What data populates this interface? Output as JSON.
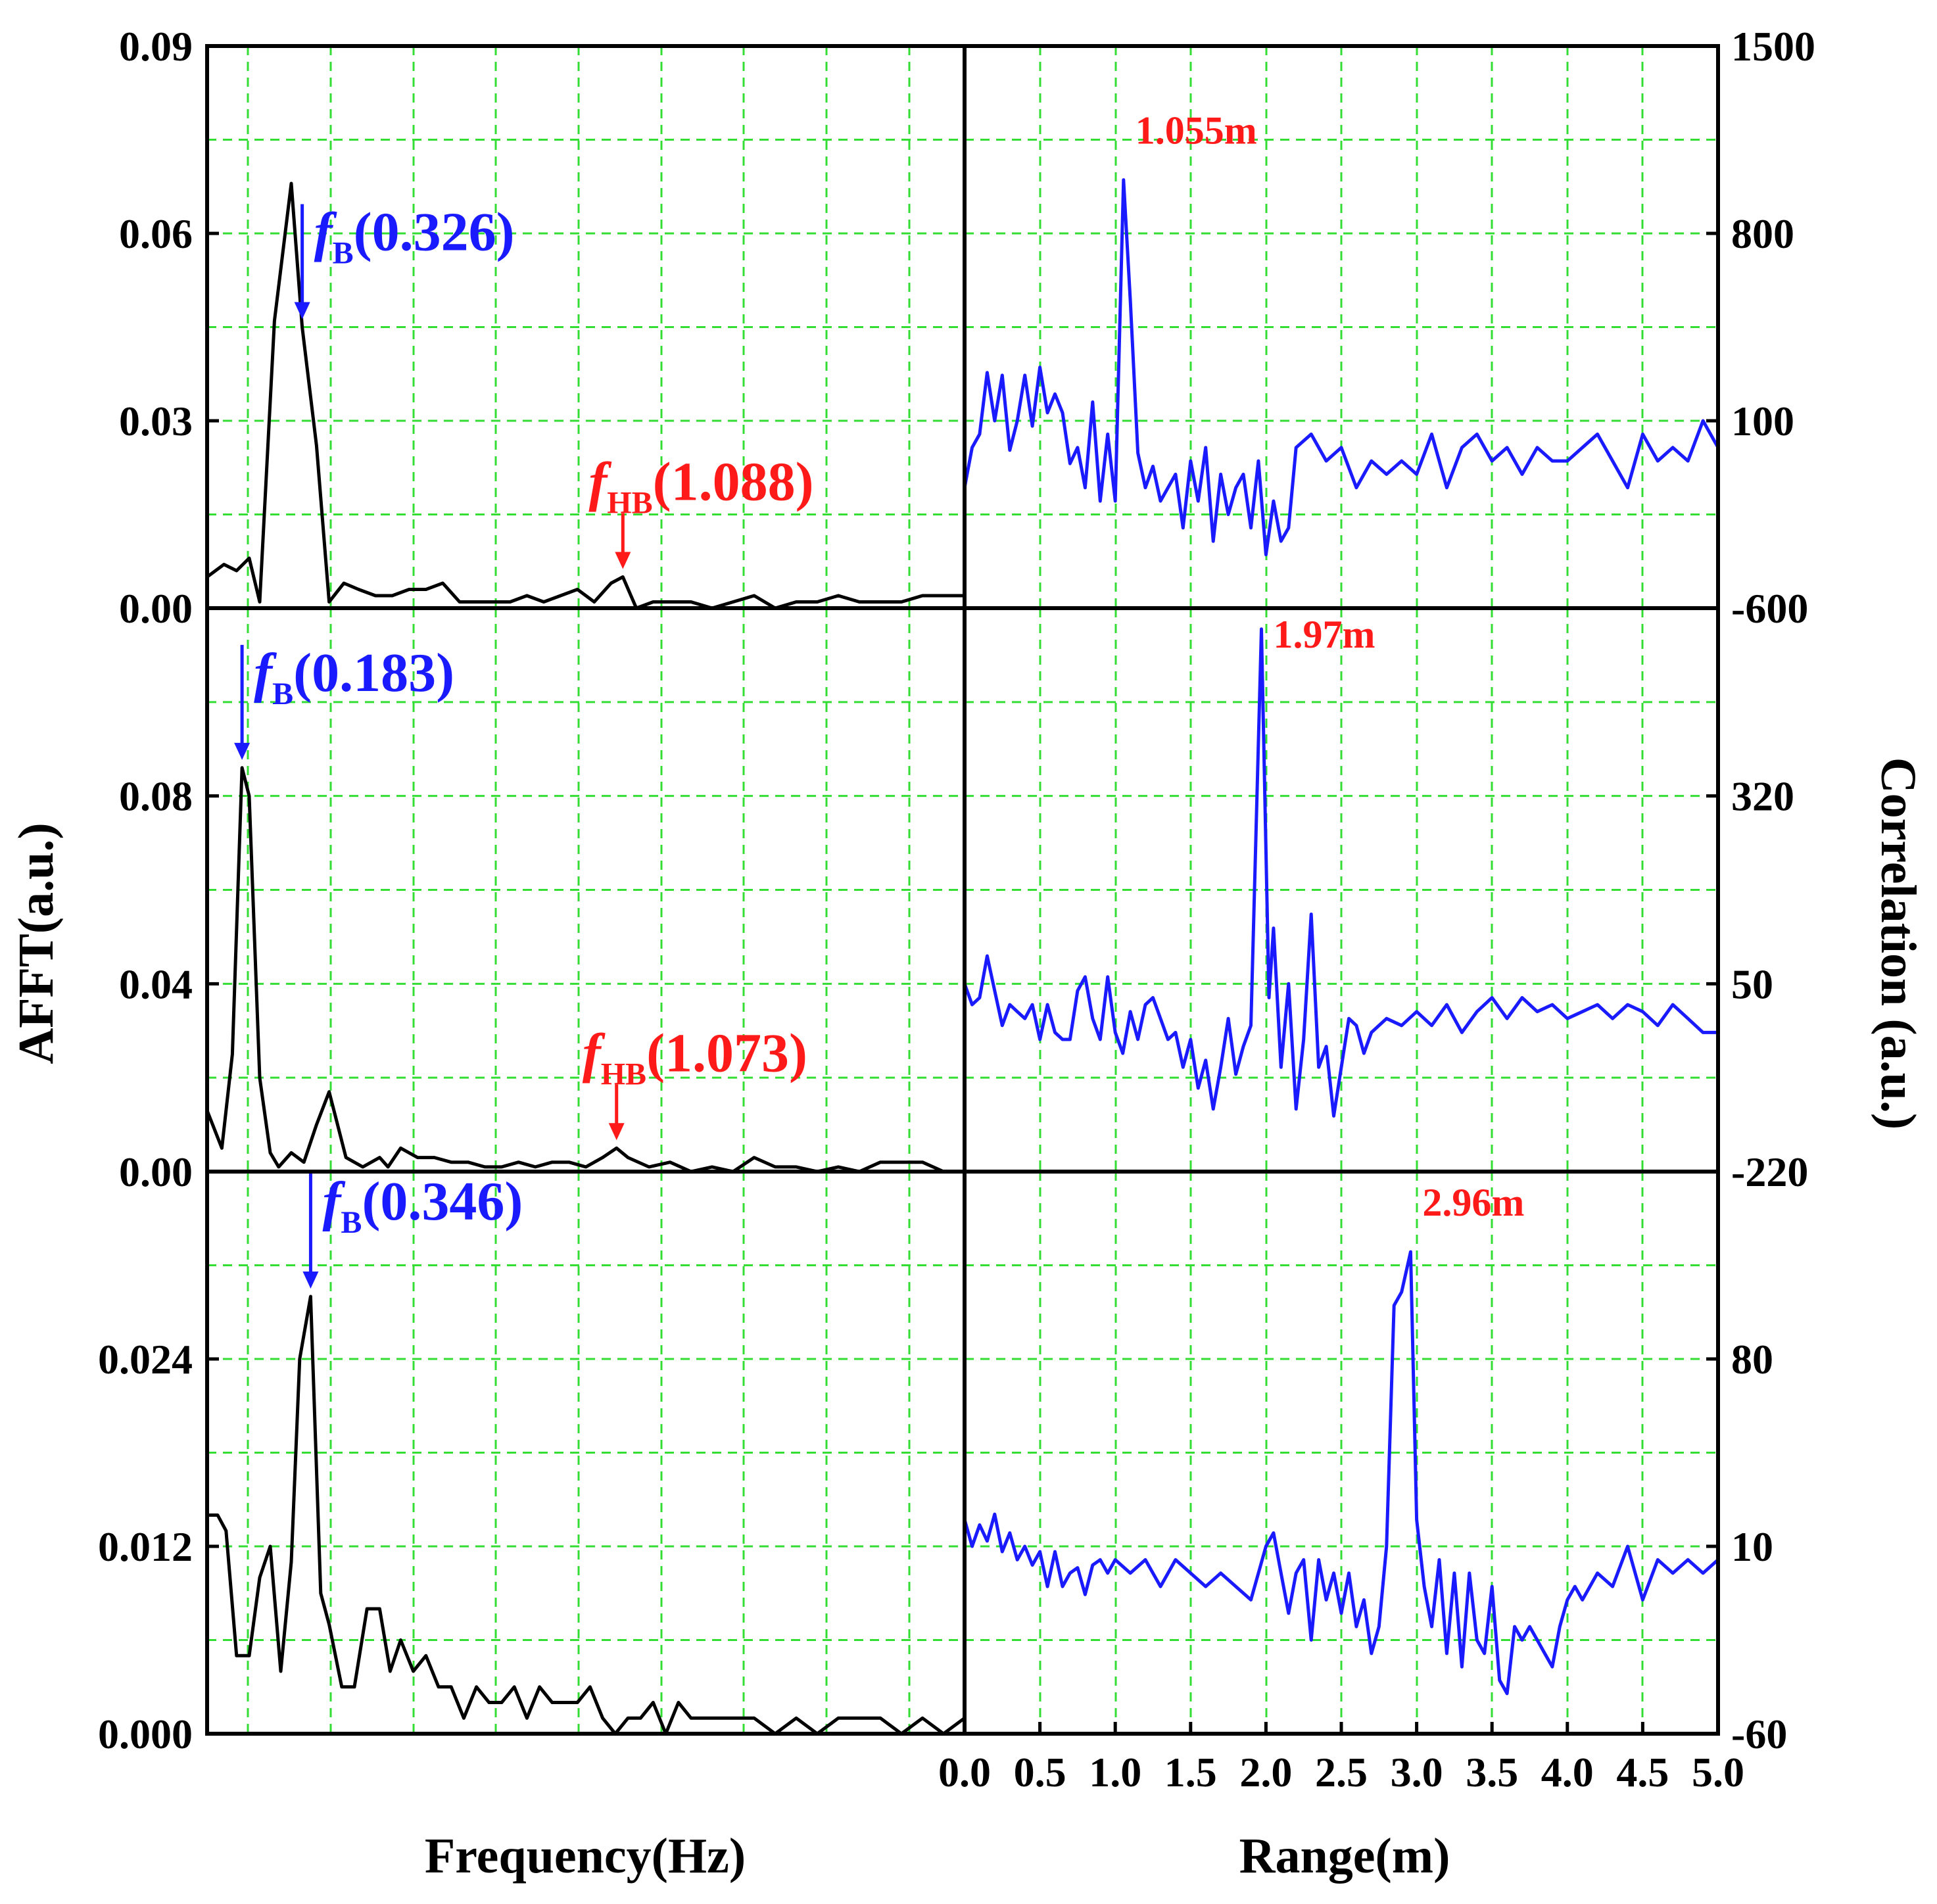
{
  "colors": {
    "fft_line": "#000000",
    "correlation_line": "#1a1aff",
    "freq_annotation": "#1a1aff",
    "hb_annotation": "#ff1a1a",
    "peak_label": "#ff1a1a",
    "grid": "#33dd33",
    "right_axis_title": "#1a1aff"
  },
  "axes": {
    "left_ylabel": "AFFT(a.u.)",
    "right_ylabel": "Correlation (a.u.)",
    "left_xlabel": "Frequency(Hz)",
    "right_xlabel": "Range(m)"
  },
  "chart_data": [
    {
      "type": "line",
      "panel": "top-left",
      "xlabel": "Frequency(Hz)",
      "ylabel": "AFFT(a.u.)",
      "xlim": [
        0.1,
        1.9
      ],
      "ylim": [
        0,
        0.09
      ],
      "xticks": [
        "0.1",
        "0.3",
        "0.5",
        "0.7",
        "0.9",
        "1.1",
        "1.3",
        "1.5",
        "1.7"
      ],
      "yticks": [
        "0.00",
        "0.03",
        "0.06",
        "0.09"
      ],
      "grid": true,
      "series": [
        {
          "x": [
            0.1,
            0.14,
            0.17,
            0.2,
            0.225,
            0.26,
            0.3,
            0.326,
            0.36,
            0.39,
            0.425,
            0.46,
            0.5,
            0.54,
            0.58,
            0.62,
            0.66,
            0.7,
            0.74,
            0.78,
            0.82,
            0.86,
            0.9,
            0.94,
            0.98,
            1.02,
            1.06,
            1.088,
            1.12,
            1.16,
            1.2,
            1.25,
            1.3,
            1.35,
            1.4,
            1.45,
            1.5,
            1.55,
            1.6,
            1.65,
            1.7,
            1.75,
            1.8,
            1.85,
            1.9
          ],
          "y": [
            0.005,
            0.007,
            0.006,
            0.008,
            0.001,
            0.046,
            0.068,
            0.045,
            0.026,
            0.001,
            0.004,
            0.003,
            0.002,
            0.002,
            0.003,
            0.003,
            0.004,
            0.001,
            0.001,
            0.001,
            0.001,
            0.002,
            0.001,
            0.002,
            0.003,
            0.001,
            0.004,
            0.005,
            0.0,
            0.001,
            0.001,
            0.001,
            0.0,
            0.001,
            0.002,
            0.0,
            0.001,
            0.001,
            0.002,
            0.001,
            0.001,
            0.001,
            0.002,
            0.002,
            0.002
          ]
        }
      ],
      "annotations": [
        {
          "italic": "f",
          "sub": "B",
          "text": "(0.326)",
          "x": 0.326,
          "color": "blue"
        },
        {
          "italic": "f",
          "sub": "HB",
          "text": "(1.088)",
          "x": 1.088,
          "color": "red"
        }
      ]
    },
    {
      "type": "line",
      "panel": "top-right",
      "xlabel": "Range(m)",
      "ylabel": "Correlation (a.u.)",
      "xlim": [
        0,
        5
      ],
      "ylim": [
        -600,
        1500
      ],
      "yticks": [
        "-600",
        "100",
        "800",
        "1500"
      ],
      "grid": true,
      "peak_label": "1.055m",
      "series": [
        {
          "x": [
            0.0,
            0.05,
            0.1,
            0.15,
            0.2,
            0.25,
            0.3,
            0.35,
            0.4,
            0.45,
            0.5,
            0.55,
            0.6,
            0.65,
            0.7,
            0.75,
            0.8,
            0.85,
            0.9,
            0.95,
            1.0,
            1.055,
            1.1,
            1.15,
            1.2,
            1.25,
            1.3,
            1.35,
            1.4,
            1.45,
            1.5,
            1.55,
            1.6,
            1.65,
            1.7,
            1.75,
            1.8,
            1.85,
            1.9,
            1.95,
            2.0,
            2.05,
            2.1,
            2.15,
            2.2,
            2.3,
            2.4,
            2.5,
            2.6,
            2.7,
            2.8,
            2.9,
            3.0,
            3.1,
            3.2,
            3.3,
            3.4,
            3.5,
            3.6,
            3.7,
            3.8,
            3.9,
            4.0,
            4.1,
            4.2,
            4.3,
            4.4,
            4.5,
            4.6,
            4.7,
            4.8,
            4.9,
            5.0
          ],
          "y": [
            -150,
            0,
            50,
            280,
            100,
            270,
            -10,
            100,
            270,
            80,
            300,
            130,
            200,
            130,
            -60,
            0,
            -150,
            170,
            -200,
            50,
            -200,
            1000,
            550,
            -20,
            -150,
            -70,
            -200,
            -150,
            -100,
            -300,
            -50,
            -200,
            0,
            -350,
            -100,
            -250,
            -150,
            -100,
            -300,
            -50,
            -400,
            -200,
            -350,
            -300,
            0,
            50,
            -50,
            0,
            -150,
            -50,
            -100,
            -50,
            -100,
            50,
            -150,
            0,
            50,
            -50,
            0,
            -100,
            0,
            -50,
            -50,
            0,
            50,
            -50,
            -150,
            50,
            -50,
            0,
            -50,
            100,
            0
          ]
        }
      ]
    },
    {
      "type": "line",
      "panel": "middle-left",
      "xlabel": "Frequency(Hz)",
      "ylabel": "AFFT(a.u.)",
      "xlim": [
        0.1,
        1.9
      ],
      "ylim": [
        0,
        0.12
      ],
      "yticks": [
        "0.00",
        "0.04",
        "0.08"
      ],
      "grid": true,
      "series": [
        {
          "x": [
            0.1,
            0.135,
            0.16,
            0.183,
            0.2,
            0.225,
            0.25,
            0.27,
            0.3,
            0.33,
            0.36,
            0.39,
            0.43,
            0.47,
            0.51,
            0.53,
            0.56,
            0.6,
            0.64,
            0.68,
            0.72,
            0.76,
            0.8,
            0.84,
            0.88,
            0.92,
            0.96,
            1.0,
            1.04,
            1.073,
            1.1,
            1.15,
            1.2,
            1.25,
            1.3,
            1.35,
            1.4,
            1.45,
            1.5,
            1.55,
            1.6,
            1.65,
            1.7,
            1.75,
            1.8,
            1.85
          ],
          "y": [
            0.013,
            0.005,
            0.025,
            0.086,
            0.08,
            0.02,
            0.004,
            0.001,
            0.004,
            0.002,
            0.01,
            0.017,
            0.003,
            0.001,
            0.003,
            0.001,
            0.005,
            0.003,
            0.003,
            0.002,
            0.002,
            0.001,
            0.001,
            0.002,
            0.001,
            0.002,
            0.002,
            0.001,
            0.003,
            0.005,
            0.003,
            0.001,
            0.002,
            0.0,
            0.001,
            0.0,
            0.003,
            0.001,
            0.001,
            0.0,
            0.001,
            0.0,
            0.002,
            0.002,
            0.002,
            0.0
          ]
        }
      ],
      "annotations": [
        {
          "italic": "f",
          "sub": "B",
          "text": "(0.183)",
          "x": 0.183,
          "color": "blue"
        },
        {
          "italic": "f",
          "sub": "HB",
          "text": "(1.073)",
          "x": 1.073,
          "color": "red"
        }
      ]
    },
    {
      "type": "line",
      "panel": "middle-right",
      "xlabel": "Range(m)",
      "ylabel": "Correlation (a.u.)",
      "xlim": [
        0,
        5
      ],
      "ylim": [
        -220,
        590
      ],
      "yticks": [
        "-220",
        "50",
        "320"
      ],
      "grid": true,
      "peak_label": "1.97m",
      "series": [
        {
          "x": [
            0.0,
            0.05,
            0.1,
            0.15,
            0.2,
            0.25,
            0.3,
            0.35,
            0.4,
            0.45,
            0.5,
            0.55,
            0.6,
            0.65,
            0.7,
            0.75,
            0.8,
            0.85,
            0.9,
            0.95,
            1.0,
            1.05,
            1.1,
            1.15,
            1.2,
            1.25,
            1.3,
            1.35,
            1.4,
            1.45,
            1.5,
            1.55,
            1.6,
            1.65,
            1.7,
            1.75,
            1.8,
            1.85,
            1.9,
            1.97,
            2.02,
            2.05,
            2.1,
            2.15,
            2.2,
            2.25,
            2.3,
            2.35,
            2.4,
            2.45,
            2.5,
            2.55,
            2.6,
            2.65,
            2.7,
            2.8,
            2.9,
            3.0,
            3.1,
            3.2,
            3.3,
            3.4,
            3.5,
            3.6,
            3.7,
            3.8,
            3.9,
            4.0,
            4.1,
            4.2,
            4.3,
            4.4,
            4.5,
            4.6,
            4.7,
            4.8,
            4.9,
            5.0
          ],
          "y": [
            50,
            20,
            30,
            90,
            40,
            -10,
            20,
            10,
            0,
            20,
            -30,
            20,
            -20,
            -30,
            -30,
            40,
            60,
            0,
            -30,
            60,
            -20,
            -50,
            10,
            -30,
            20,
            30,
            0,
            -30,
            -20,
            -70,
            -30,
            -100,
            -60,
            -130,
            -70,
            0,
            -80,
            -40,
            -10,
            560,
            30,
            130,
            -70,
            50,
            -130,
            -30,
            150,
            -70,
            -40,
            -140,
            -70,
            0,
            -10,
            -50,
            -20,
            0,
            -10,
            10,
            -10,
            20,
            -20,
            10,
            30,
            0,
            30,
            10,
            20,
            0,
            10,
            20,
            0,
            20,
            10,
            -10,
            20,
            0,
            -20,
            -20
          ]
        }
      ]
    },
    {
      "type": "line",
      "panel": "bottom-left",
      "xlabel": "Frequency(Hz)",
      "ylabel": "AFFT(a.u.)",
      "xlim": [
        0.1,
        1.9
      ],
      "ylim": [
        0,
        0.036
      ],
      "yticks": [
        "0.000",
        "0.012",
        "0.024"
      ],
      "grid": true,
      "series": [
        {
          "x": [
            0.1,
            0.125,
            0.145,
            0.17,
            0.2,
            0.225,
            0.25,
            0.275,
            0.3,
            0.32,
            0.346,
            0.37,
            0.39,
            0.42,
            0.45,
            0.48,
            0.51,
            0.535,
            0.56,
            0.59,
            0.62,
            0.65,
            0.68,
            0.71,
            0.74,
            0.77,
            0.8,
            0.83,
            0.86,
            0.89,
            0.92,
            0.95,
            0.98,
            1.01,
            1.04,
            1.07,
            1.1,
            1.13,
            1.16,
            1.19,
            1.22,
            1.25,
            1.3,
            1.35,
            1.4,
            1.45,
            1.5,
            1.55,
            1.6,
            1.65,
            1.7,
            1.75,
            1.8,
            1.85,
            1.9
          ],
          "y": [
            0.014,
            0.014,
            0.013,
            0.005,
            0.005,
            0.01,
            0.012,
            0.004,
            0.011,
            0.024,
            0.028,
            0.009,
            0.007,
            0.003,
            0.003,
            0.008,
            0.008,
            0.004,
            0.006,
            0.004,
            0.005,
            0.003,
            0.003,
            0.001,
            0.003,
            0.002,
            0.002,
            0.003,
            0.001,
            0.003,
            0.002,
            0.002,
            0.002,
            0.003,
            0.001,
            0.0,
            0.001,
            0.001,
            0.002,
            0.0,
            0.002,
            0.001,
            0.001,
            0.001,
            0.001,
            0.0,
            0.001,
            0.0,
            0.001,
            0.001,
            0.001,
            0.0,
            0.001,
            0.0,
            0.001
          ]
        }
      ],
      "annotations": [
        {
          "italic": "f",
          "sub": "B",
          "text": "(0.346)",
          "x": 0.346,
          "color": "blue"
        }
      ]
    },
    {
      "type": "line",
      "panel": "bottom-right",
      "xlabel": "Range(m)",
      "ylabel": "Correlation (a.u.)",
      "xlim": [
        0,
        5
      ],
      "ylim": [
        -60,
        150
      ],
      "xticks": [
        "0.0",
        "0.5",
        "1.0",
        "1.5",
        "2.0",
        "2.5",
        "3.0",
        "3.5",
        "4.0",
        "4.5",
        "5.0"
      ],
      "yticks": [
        "-60",
        "10",
        "80"
      ],
      "grid": true,
      "peak_label": "2.96m",
      "series": [
        {
          "x": [
            0.0,
            0.05,
            0.1,
            0.15,
            0.2,
            0.25,
            0.3,
            0.35,
            0.4,
            0.45,
            0.5,
            0.55,
            0.6,
            0.65,
            0.7,
            0.75,
            0.8,
            0.85,
            0.9,
            0.95,
            1.0,
            1.1,
            1.2,
            1.3,
            1.4,
            1.5,
            1.6,
            1.7,
            1.8,
            1.9,
            2.0,
            2.05,
            2.1,
            2.15,
            2.2,
            2.25,
            2.3,
            2.35,
            2.4,
            2.45,
            2.5,
            2.55,
            2.6,
            2.65,
            2.7,
            2.75,
            2.8,
            2.85,
            2.9,
            2.96,
            3.0,
            3.05,
            3.1,
            3.15,
            3.2,
            3.25,
            3.3,
            3.35,
            3.4,
            3.45,
            3.5,
            3.55,
            3.6,
            3.65,
            3.7,
            3.75,
            3.8,
            3.85,
            3.9,
            3.95,
            4.0,
            4.05,
            4.1,
            4.2,
            4.3,
            4.4,
            4.5,
            4.6,
            4.7,
            4.8,
            4.9,
            5.0
          ],
          "y": [
            20,
            10,
            18,
            12,
            22,
            8,
            15,
            5,
            10,
            3,
            8,
            -5,
            8,
            -5,
            0,
            2,
            -8,
            3,
            5,
            0,
            5,
            0,
            5,
            -5,
            5,
            0,
            -5,
            0,
            -5,
            -10,
            10,
            15,
            0,
            -15,
            0,
            5,
            -25,
            5,
            -10,
            0,
            -15,
            0,
            -20,
            -10,
            -30,
            -20,
            10,
            100,
            105,
            120,
            20,
            -5,
            -20,
            5,
            -30,
            0,
            -35,
            0,
            -25,
            -30,
            -5,
            -40,
            -45,
            -20,
            -25,
            -20,
            -25,
            -30,
            -35,
            -20,
            -10,
            -5,
            -10,
            0,
            -5,
            10,
            -10,
            5,
            0,
            5,
            0,
            5
          ]
        }
      ]
    }
  ]
}
